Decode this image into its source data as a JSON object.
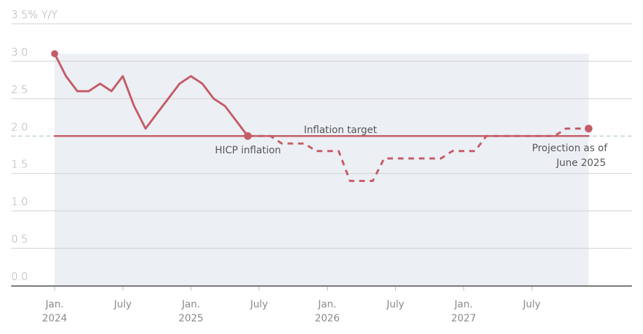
{
  "chart_data": {
    "type": "line",
    "title": "",
    "ylabel": "% Y/Y",
    "xlabel": "",
    "ylim": [
      0,
      3.5
    ],
    "y_ticks": [
      "0.0",
      "0.5",
      "1.0",
      "1.5",
      "2.0",
      "2.5",
      "3.0",
      "3.5% Y/Y"
    ],
    "x_ticks": [
      {
        "line1": "Jan.",
        "line2": "2024"
      },
      {
        "line1": "July",
        "line2": ""
      },
      {
        "line1": "Jan.",
        "line2": "2025"
      },
      {
        "line1": "July",
        "line2": ""
      },
      {
        "line1": "Jan.",
        "line2": "2026"
      },
      {
        "line1": "July",
        "line2": ""
      },
      {
        "line1": "Jan.",
        "line2": "2027"
      },
      {
        "line1": "July",
        "line2": ""
      }
    ],
    "grid": true,
    "series": [
      {
        "name": "HICP inflation",
        "style": "solid",
        "x": [
          "2024-01",
          "2024-02",
          "2024-03",
          "2024-04",
          "2024-05",
          "2024-06",
          "2024-07",
          "2024-08",
          "2024-09",
          "2024-10",
          "2024-11",
          "2024-12",
          "2025-01",
          "2025-02",
          "2025-03",
          "2025-04",
          "2025-05",
          "2025-06"
        ],
        "values": [
          3.1,
          2.8,
          2.6,
          2.6,
          2.7,
          2.6,
          2.8,
          2.4,
          2.1,
          2.3,
          2.5,
          2.7,
          2.8,
          2.7,
          2.5,
          2.4,
          2.2,
          2.0
        ]
      },
      {
        "name": "Projection as of June 2025",
        "style": "dashed",
        "x": [
          "2025-06",
          "2025-07",
          "2025-08",
          "2025-09",
          "2025-10",
          "2025-11",
          "2025-12",
          "2026-01",
          "2026-02",
          "2026-03",
          "2026-04",
          "2026-05",
          "2026-06",
          "2026-07",
          "2026-08",
          "2026-09",
          "2026-10",
          "2026-11",
          "2026-12",
          "2027-01",
          "2027-02",
          "2027-03",
          "2027-04",
          "2027-05",
          "2027-06",
          "2027-07",
          "2027-08",
          "2027-09",
          "2027-10",
          "2027-11",
          "2027-12"
        ],
        "values": [
          2.0,
          2.0,
          2.0,
          1.9,
          1.9,
          1.9,
          1.8,
          1.8,
          1.8,
          1.4,
          1.4,
          1.4,
          1.7,
          1.7,
          1.7,
          1.7,
          1.7,
          1.7,
          1.8,
          1.8,
          1.8,
          2.0,
          2.0,
          2.0,
          2.0,
          2.0,
          2.0,
          2.0,
          2.1,
          2.1,
          2.1
        ]
      },
      {
        "name": "Inflation target",
        "style": "solid",
        "x": [
          "2024-01",
          "2027-12"
        ],
        "values": [
          2.0,
          2.0
        ]
      }
    ],
    "annotations": [
      {
        "text": "Inflation target",
        "at": "2025-10",
        "value": 2.0
      },
      {
        "text": "HICP inflation",
        "at": "2025-06",
        "value": 2.0
      },
      {
        "text": "Projection as of",
        "text2": "June 2025",
        "at": "2027-12",
        "value": 2.1
      }
    ],
    "shaded_region": {
      "from": "2024-01",
      "to": "2027-12"
    },
    "colors": {
      "line": "#c45c66",
      "shade": "#eceff4",
      "grid": "#d0d0d0",
      "axis": "#444444",
      "target_dash": "#9fc9a8"
    }
  },
  "labels": {
    "inflation_target": "Inflation target",
    "hicp_inflation": "HICP inflation",
    "projection_line1": "Projection as of",
    "projection_line2": "June 2025"
  }
}
